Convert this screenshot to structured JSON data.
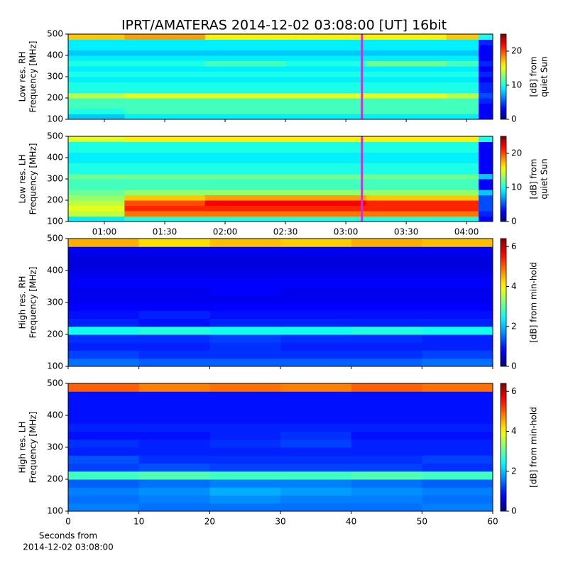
{
  "title": "IPRT/AMATERAS 2014-12-02 03:08:00 [UT]   16bit",
  "chart_data": [
    {
      "type": "heatmap",
      "ylabel": [
        "Low res. RH",
        "Frequency [MHz]"
      ],
      "colorbar_label": [
        "[dB] from",
        "quiet Sun"
      ],
      "xlim": [
        42,
        253
      ],
      "ylim": [
        100,
        500
      ],
      "clim": [
        0,
        25
      ],
      "colormap": "jet",
      "xticks": [
        60,
        90,
        120,
        150,
        180,
        210,
        240
      ],
      "xticklabels": false,
      "yticks": [
        100,
        200,
        300,
        400,
        500
      ],
      "cticks": [
        0,
        10,
        20
      ],
      "marker_x": 188,
      "marker_color": "#d030d0",
      "x_edges": [
        42,
        70,
        110,
        150,
        190,
        230,
        246,
        253
      ],
      "y_edges": [
        100,
        125,
        150,
        175,
        200,
        225,
        250,
        275,
        300,
        325,
        350,
        375,
        400,
        425,
        450,
        475,
        500
      ],
      "z": [
        [
          8,
          9,
          9,
          9,
          9,
          9,
          3
        ],
        [
          10,
          11,
          11,
          11,
          11,
          11,
          3
        ],
        [
          11,
          11,
          11,
          11,
          11,
          11,
          3
        ],
        [
          11,
          11,
          11,
          11,
          11,
          11,
          4
        ],
        [
          14,
          15,
          15,
          15,
          15,
          14,
          5
        ],
        [
          10,
          10,
          10,
          10,
          10,
          10,
          4
        ],
        [
          10,
          10,
          10,
          10,
          10,
          10,
          4
        ],
        [
          9,
          9,
          9,
          9,
          9,
          9,
          3
        ],
        [
          10,
          10,
          10,
          10,
          10,
          10,
          4
        ],
        [
          9,
          9,
          9,
          9,
          9,
          9,
          3
        ],
        [
          10,
          10,
          11,
          10,
          12,
          11,
          4
        ],
        [
          9,
          9,
          9,
          9,
          9,
          9,
          3
        ],
        [
          8,
          8,
          8,
          8,
          8,
          8,
          3
        ],
        [
          9,
          9,
          9,
          9,
          9,
          9,
          3
        ],
        [
          9,
          9,
          9,
          9,
          9,
          9,
          4
        ],
        [
          17,
          18,
          16,
          16,
          16,
          17,
          10
        ]
      ]
    },
    {
      "type": "heatmap",
      "ylabel": [
        "Low res. LH",
        "Frequency [MHz]"
      ],
      "colorbar_label": [
        "[dB] from",
        "quiet Sun"
      ],
      "xlim": [
        42,
        253
      ],
      "ylim": [
        100,
        500
      ],
      "clim": [
        0,
        25
      ],
      "colormap": "jet",
      "xticks": [
        {
          "value": 60,
          "label": "01:00"
        },
        {
          "value": 90,
          "label": "01:30"
        },
        {
          "value": 120,
          "label": "02:00"
        },
        {
          "value": 150,
          "label": "02:30"
        },
        {
          "value": 180,
          "label": "03:00"
        },
        {
          "value": 210,
          "label": "03:30"
        },
        {
          "value": 240,
          "label": "04:00"
        }
      ],
      "xticklabels": true,
      "yticks": [
        100,
        200,
        300,
        400,
        500
      ],
      "cticks": [
        0,
        10,
        20
      ],
      "marker_x": 188,
      "marker_color": "#d030d0",
      "x_edges": [
        42,
        70,
        110,
        150,
        190,
        230,
        246,
        253
      ],
      "y_edges": [
        100,
        125,
        150,
        175,
        200,
        225,
        250,
        275,
        300,
        325,
        350,
        375,
        400,
        425,
        450,
        475,
        500
      ],
      "z": [
        [
          9,
          10,
          10,
          10,
          10,
          10,
          3
        ],
        [
          14,
          19,
          19,
          19,
          19,
          19,
          4
        ],
        [
          15,
          21,
          21,
          21,
          21,
          21,
          5
        ],
        [
          14,
          20,
          22,
          22,
          21,
          21,
          5
        ],
        [
          13,
          17,
          18,
          18,
          17,
          17,
          5
        ],
        [
          12,
          13,
          13,
          13,
          13,
          13,
          8
        ],
        [
          11,
          11,
          11,
          11,
          11,
          11,
          3
        ],
        [
          11,
          11,
          11,
          11,
          11,
          11,
          3
        ],
        [
          12,
          12,
          12,
          12,
          12,
          12,
          8
        ],
        [
          10,
          10,
          10,
          10,
          10,
          10,
          3
        ],
        [
          10,
          10,
          10,
          10,
          10,
          10,
          3
        ],
        [
          9,
          9,
          9,
          9,
          9,
          9,
          3
        ],
        [
          9,
          9,
          9,
          9,
          9,
          9,
          3
        ],
        [
          10,
          10,
          10,
          10,
          10,
          10,
          3
        ],
        [
          10,
          10,
          10,
          10,
          10,
          10,
          3
        ],
        [
          15,
          16,
          16,
          16,
          16,
          16,
          10
        ]
      ]
    },
    {
      "type": "heatmap",
      "ylabel": [
        "High res. RH",
        "Frequency [MHz]"
      ],
      "colorbar_label": [
        "[dB] from min-hold"
      ],
      "xlim": [
        0,
        60
      ],
      "ylim": [
        100,
        500
      ],
      "clim": [
        0,
        6.4
      ],
      "colormap": "jet",
      "xticks": [
        0,
        10,
        20,
        30,
        40,
        50,
        60
      ],
      "xticklabels": false,
      "yticks": [
        100,
        200,
        300,
        400,
        500
      ],
      "cticks": [
        0,
        2,
        4,
        6
      ],
      "x_edges": [
        0,
        10,
        20,
        30,
        40,
        50,
        60
      ],
      "y_edges": [
        100,
        125,
        150,
        175,
        200,
        225,
        250,
        275,
        300,
        325,
        350,
        375,
        400,
        425,
        450,
        475,
        500
      ],
      "z": [
        [
          1.5,
          1.4,
          1.4,
          1.4,
          1.4,
          1.5
        ],
        [
          1.2,
          1.1,
          1.1,
          1.1,
          1.1,
          1.2
        ],
        [
          1.0,
          1.0,
          1.1,
          1.0,
          1.0,
          1.0
        ],
        [
          1.1,
          1.1,
          1.2,
          1.1,
          1.1,
          1.0
        ],
        [
          2.5,
          2.6,
          2.5,
          2.5,
          2.6,
          2.5
        ],
        [
          1.0,
          0.9,
          1.0,
          1.0,
          1.0,
          1.0
        ],
        [
          0.9,
          1.0,
          0.9,
          0.9,
          0.9,
          0.9
        ],
        [
          0.8,
          0.8,
          0.8,
          0.8,
          0.8,
          0.8
        ],
        [
          0.7,
          0.7,
          0.7,
          0.7,
          0.7,
          0.7
        ],
        [
          0.7,
          0.7,
          0.8,
          0.7,
          0.7,
          0.7
        ],
        [
          0.8,
          0.8,
          0.8,
          0.8,
          0.8,
          0.8
        ],
        [
          0.7,
          0.7,
          0.7,
          0.7,
          0.7,
          0.7
        ],
        [
          0.6,
          0.6,
          0.6,
          0.6,
          0.6,
          0.6
        ],
        [
          0.6,
          0.6,
          0.6,
          0.6,
          0.6,
          0.6
        ],
        [
          0.7,
          0.7,
          0.7,
          0.7,
          0.7,
          0.7
        ],
        [
          4.5,
          4.2,
          4.4,
          4.3,
          4.5,
          4.4
        ]
      ]
    },
    {
      "type": "heatmap",
      "ylabel": [
        "High res. LH",
        "Frequency [MHz]"
      ],
      "colorbar_label": [
        "[dB] from min-hold"
      ],
      "xlabel": [
        "Seconds from",
        "2014-12-02 03:08:00"
      ],
      "xlim": [
        0,
        60
      ],
      "ylim": [
        100,
        500
      ],
      "clim": [
        0,
        6.4
      ],
      "colormap": "jet",
      "xticks": [
        0,
        10,
        20,
        30,
        40,
        50,
        60
      ],
      "xticklabels": true,
      "yticks": [
        100,
        200,
        300,
        400,
        500
      ],
      "cticks": [
        0,
        2,
        4,
        6
      ],
      "x_edges": [
        0,
        10,
        20,
        30,
        40,
        50,
        60
      ],
      "y_edges": [
        100,
        125,
        150,
        175,
        200,
        225,
        250,
        275,
        300,
        325,
        350,
        375,
        400,
        425,
        450,
        475,
        500
      ],
      "z": [
        [
          1.6,
          1.5,
          1.5,
          1.5,
          1.5,
          1.6
        ],
        [
          1.5,
          1.6,
          1.7,
          1.6,
          1.6,
          1.5
        ],
        [
          1.6,
          1.7,
          1.9,
          1.8,
          1.7,
          1.6
        ],
        [
          1.4,
          1.5,
          1.6,
          1.6,
          1.5,
          1.4
        ],
        [
          2.8,
          2.9,
          2.8,
          2.8,
          2.9,
          2.8
        ],
        [
          1.2,
          1.3,
          1.2,
          1.2,
          1.2,
          1.1
        ],
        [
          1.3,
          1.1,
          1.1,
          1.1,
          1.1,
          1.2
        ],
        [
          1.0,
          1.0,
          1.0,
          1.0,
          1.0,
          1.0
        ],
        [
          1.1,
          1.0,
          1.1,
          1.2,
          1.0,
          1.0
        ],
        [
          0.9,
          0.9,
          1.0,
          1.1,
          0.9,
          0.9
        ],
        [
          1.0,
          1.0,
          1.0,
          1.0,
          1.0,
          1.0
        ],
        [
          0.9,
          0.9,
          0.9,
          0.9,
          0.9,
          0.9
        ],
        [
          0.9,
          0.9,
          0.9,
          0.9,
          0.9,
          0.9
        ],
        [
          0.9,
          0.9,
          0.9,
          0.9,
          0.9,
          0.9
        ],
        [
          0.9,
          0.9,
          0.9,
          0.9,
          0.9,
          0.9
        ],
        [
          5.0,
          4.8,
          4.9,
          4.8,
          5.0,
          4.9
        ]
      ]
    }
  ]
}
